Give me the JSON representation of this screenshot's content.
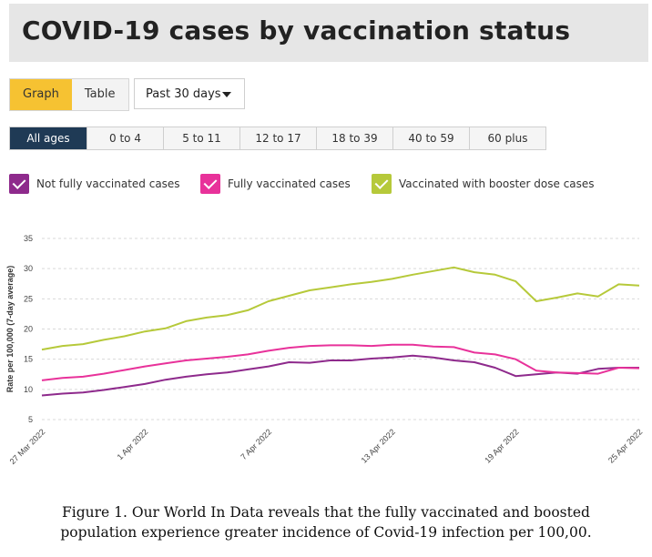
{
  "header": {
    "title": "COVID-19 cases by vaccination status"
  },
  "view_toggle": {
    "graph_label": "Graph",
    "table_label": "Table"
  },
  "period_select": {
    "selected": "Past 30 days"
  },
  "age_groups": [
    "All ages",
    "0 to 4",
    "5 to 11",
    "12 to 17",
    "18 to 39",
    "40 to 59",
    "60 plus"
  ],
  "legend": [
    {
      "label": "Not fully vaccinated cases",
      "color": "#8e2a8c"
    },
    {
      "label": "Fully vaccinated cases",
      "color": "#e8329a"
    },
    {
      "label": "Vaccinated with booster dose cases",
      "color": "#b6c93a"
    }
  ],
  "caption": {
    "line1": "Figure 1. Our World In Data reveals that the fully vaccinated and boosted",
    "line2": "population experience greater incidence of Covid-19 infection per 100,00."
  },
  "chart_data": {
    "type": "line",
    "ylabel": "Rate per 100,000 (7-day average)",
    "ylim": [
      5,
      35
    ],
    "yticks": [
      5,
      10,
      15,
      20,
      25,
      30,
      35
    ],
    "grid": true,
    "x": [
      "27 Mar 2022",
      "28 Mar 2022",
      "29 Mar 2022",
      "30 Mar 2022",
      "31 Mar 2022",
      "1 Apr 2022",
      "2 Apr 2022",
      "3 Apr 2022",
      "4 Apr 2022",
      "5 Apr 2022",
      "6 Apr 2022",
      "7 Apr 2022",
      "8 Apr 2022",
      "9 Apr 2022",
      "10 Apr 2022",
      "11 Apr 2022",
      "12 Apr 2022",
      "13 Apr 2022",
      "14 Apr 2022",
      "15 Apr 2022",
      "16 Apr 2022",
      "17 Apr 2022",
      "18 Apr 2022",
      "19 Apr 2022",
      "20 Apr 2022",
      "21 Apr 2022",
      "22 Apr 2022",
      "23 Apr 2022",
      "24 Apr 2022",
      "25 Apr 2022"
    ],
    "xticks": [
      "27 Mar 2022",
      "1 Apr 2022",
      "7 Apr 2022",
      "13 Apr 2022",
      "19 Apr 2022",
      "25 Apr 2022"
    ],
    "series": [
      {
        "name": "Not fully vaccinated cases",
        "color": "#8e2a8c",
        "values": [
          9.0,
          9.3,
          9.5,
          9.9,
          10.4,
          10.9,
          11.6,
          12.1,
          12.5,
          12.8,
          13.3,
          13.8,
          14.5,
          14.4,
          14.8,
          14.8,
          15.1,
          15.3,
          15.6,
          15.3,
          14.8,
          14.5,
          13.6,
          12.2,
          12.5,
          12.8,
          12.6,
          13.4,
          13.6,
          13.6
        ]
      },
      {
        "name": "Fully vaccinated cases",
        "color": "#e8329a",
        "values": [
          11.5,
          11.9,
          12.1,
          12.6,
          13.2,
          13.8,
          14.3,
          14.8,
          15.1,
          15.4,
          15.8,
          16.4,
          16.9,
          17.2,
          17.3,
          17.3,
          17.2,
          17.4,
          17.4,
          17.1,
          17.0,
          16.1,
          15.8,
          15.0,
          13.1,
          12.8,
          12.7,
          12.6,
          13.6,
          13.5
        ]
      },
      {
        "name": "Vaccinated with booster dose cases",
        "color": "#b6c93a",
        "values": [
          16.6,
          17.2,
          17.5,
          18.2,
          18.8,
          19.6,
          20.1,
          21.3,
          21.9,
          22.3,
          23.1,
          24.6,
          25.5,
          26.4,
          26.9,
          27.4,
          27.8,
          28.3,
          29.0,
          29.6,
          30.2,
          29.4,
          29.0,
          27.9,
          24.6,
          25.2,
          25.9,
          25.4,
          27.4,
          27.2
        ]
      }
    ]
  }
}
